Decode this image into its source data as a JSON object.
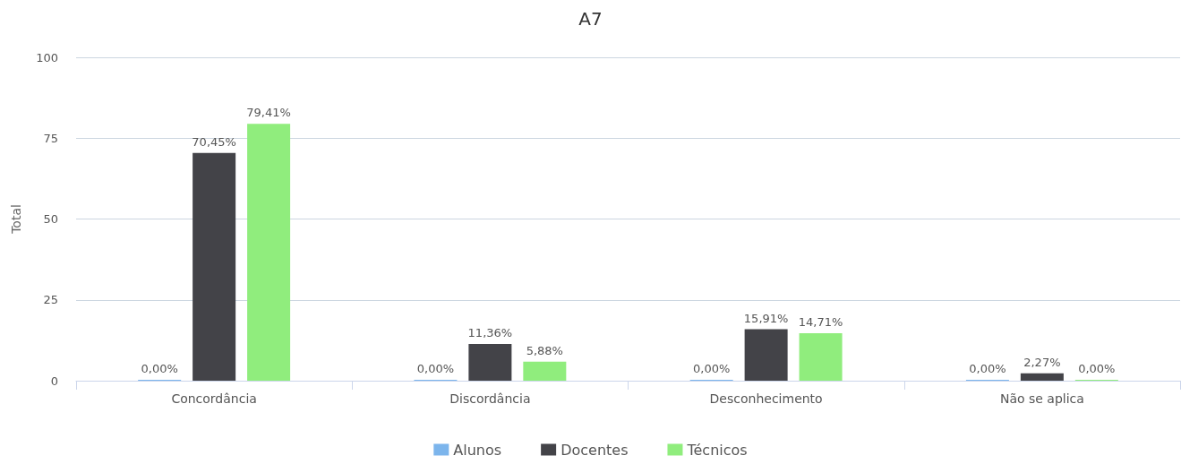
{
  "chart_data": {
    "type": "bar",
    "title": "A7",
    "ylabel": "Total",
    "categories": [
      "Concordância",
      "Discordância",
      "Desconhecimento",
      "Não se aplica"
    ],
    "series": [
      {
        "name": "Alunos",
        "color": "#7cb5ec",
        "values": [
          0,
          0,
          0,
          0
        ],
        "value_labels": [
          "0,00%",
          "0,00%",
          "0,00%",
          "0,00%"
        ]
      },
      {
        "name": "Docentes",
        "color": "#434348",
        "values": [
          70.45,
          11.36,
          15.91,
          2.27
        ],
        "value_labels": [
          "70,45%",
          "11,36%",
          "15,91%",
          "2,27%"
        ]
      },
      {
        "name": "Técnicos",
        "color": "#90ed7d",
        "values": [
          79.41,
          5.88,
          14.71,
          0
        ],
        "value_labels": [
          "79,41%",
          "5,88%",
          "14,71%",
          "0,00%"
        ]
      }
    ],
    "ylim": [
      0,
      100
    ],
    "yticks": [
      0,
      25,
      50,
      75,
      100
    ],
    "grid": "y",
    "legend": "bottom"
  }
}
